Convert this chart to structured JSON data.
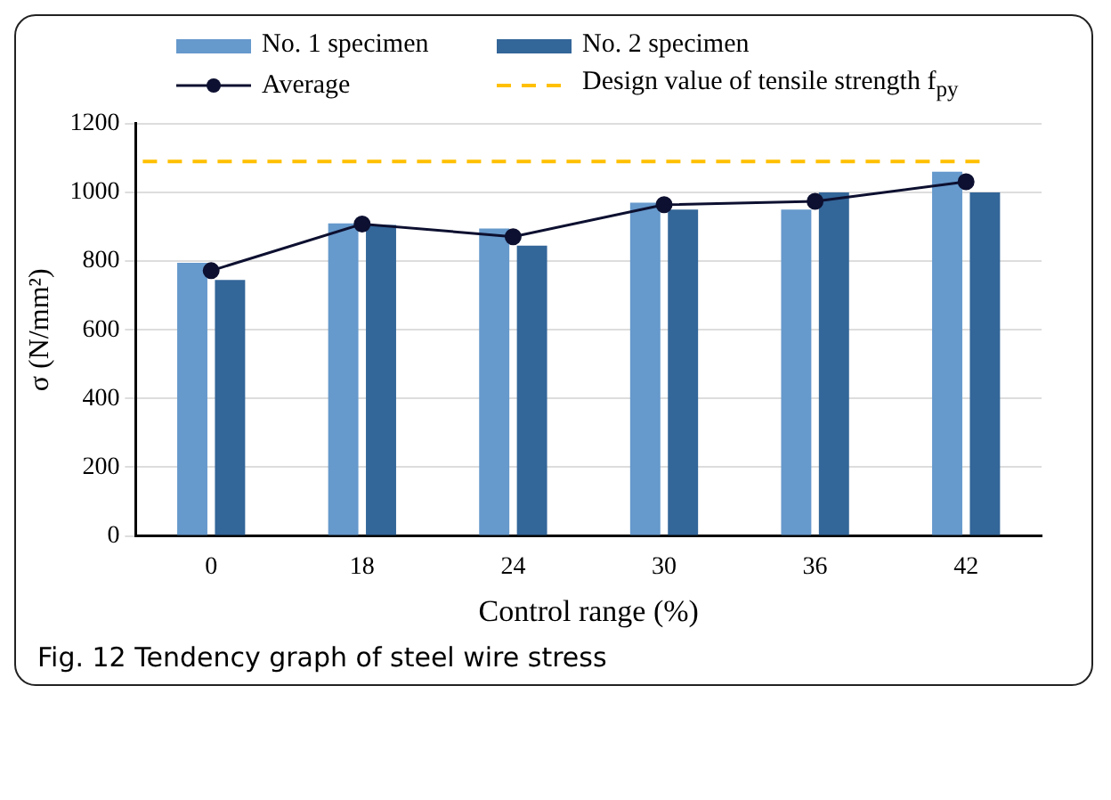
{
  "chart_data": {
    "type": "bar",
    "xlabel": "Control range (%)",
    "ylabel": "σ (N/mm²)",
    "categories": [
      "0",
      "18",
      "24",
      "30",
      "36",
      "42"
    ],
    "series": [
      {
        "name": "No. 1 specimen",
        "color": "#6699cc",
        "values": [
          795,
          910,
          895,
          970,
          950,
          1060
        ]
      },
      {
        "name": "No. 2 specimen",
        "color": "#336699",
        "values": [
          745,
          905,
          845,
          950,
          1000,
          1000
        ]
      },
      {
        "name": "Average",
        "type": "line",
        "color": "#0d1030",
        "values": [
          772,
          908,
          871,
          964,
          974,
          1031
        ]
      }
    ],
    "ref_lines": [
      {
        "axis": "y",
        "value": 1090,
        "label": "Design value of tensile strength f$_{py}$",
        "color": "#ffc000",
        "line_style": "dashed"
      }
    ],
    "ylim": [
      0,
      1200
    ],
    "yticks": [
      0,
      200,
      400,
      600,
      800,
      1000,
      1200
    ],
    "grid": "y",
    "legend": "top",
    "marker": "circle",
    "annotations": [
      "Fig. 12  Tendency graph of steel wire stress"
    ]
  }
}
